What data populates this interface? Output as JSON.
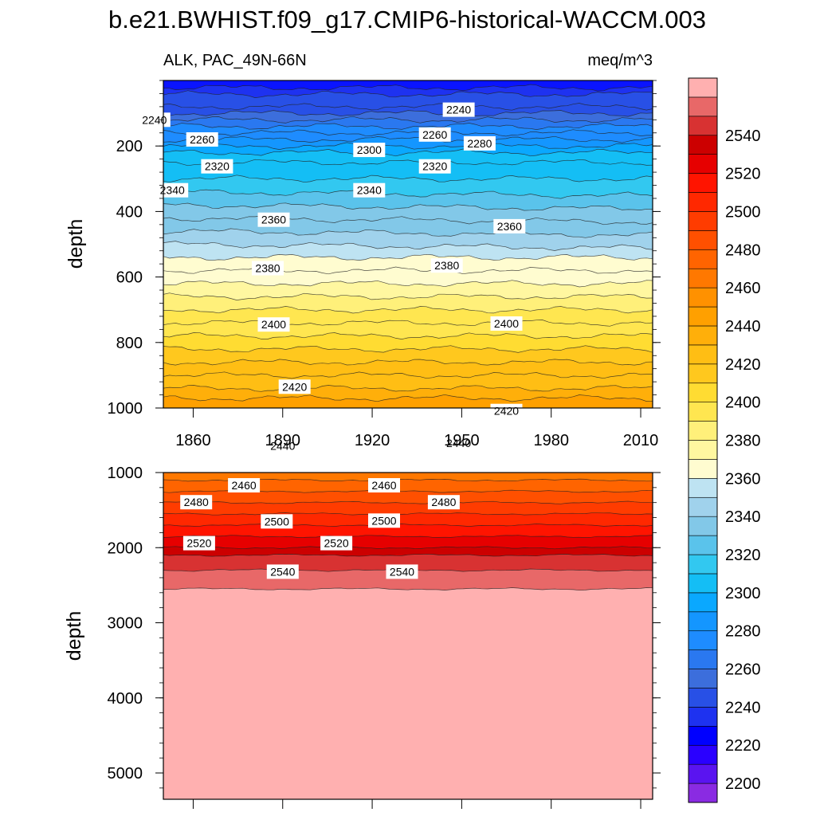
{
  "chart_data": {
    "type": "heatmap",
    "title": "b.e21.BWHIST.f09_g17.CMIP6-historical-WACCM.003",
    "subtitle_left": "ALK, PAC_49N-66N",
    "subtitle_right": "meq/m^3",
    "xlim": [
      1850,
      2014
    ],
    "x_ticks": [
      "1860",
      "1890",
      "1920",
      "1950",
      "1980",
      "2010"
    ],
    "panels": [
      {
        "name": "upper",
        "ylabel": "depth",
        "ylim": [
          0,
          1000
        ],
        "y_ticks": [
          "200",
          "400",
          "600",
          "800",
          "1000"
        ],
        "contour_depths": [
          22,
          42,
          80,
          100,
          120,
          140,
          160,
          180,
          200,
          220,
          250,
          300,
          340,
          380,
          420,
          460,
          500,
          540,
          580,
          620,
          660,
          700,
          740,
          780,
          820,
          860,
          900,
          940,
          970
        ],
        "contour_labels": [
          {
            "text": "2240",
            "x": 1847,
            "y": 120
          },
          {
            "text": "2240",
            "x": 1949,
            "y": 89
          },
          {
            "text": "2260",
            "x": 1863,
            "y": 180
          },
          {
            "text": "2260",
            "x": 1941,
            "y": 165
          },
          {
            "text": "2280",
            "x": 1956,
            "y": 192
          },
          {
            "text": "2300",
            "x": 1919,
            "y": 212
          },
          {
            "text": "2320",
            "x": 1868,
            "y": 262
          },
          {
            "text": "2320",
            "x": 1941,
            "y": 262
          },
          {
            "text": "2340",
            "x": 1853,
            "y": 335
          },
          {
            "text": "2340",
            "x": 1919,
            "y": 335
          },
          {
            "text": "2360",
            "x": 1887,
            "y": 425
          },
          {
            "text": "2360",
            "x": 1966,
            "y": 445
          },
          {
            "text": "2380",
            "x": 1885,
            "y": 573
          },
          {
            "text": "2380",
            "x": 1945,
            "y": 565
          },
          {
            "text": "2400",
            "x": 1887,
            "y": 745
          },
          {
            "text": "2400",
            "x": 1965,
            "y": 742
          },
          {
            "text": "2420",
            "x": 1894,
            "y": 935
          },
          {
            "text": "2420",
            "x": 1965,
            "y": 1009
          },
          {
            "text": "2440",
            "x": 1890,
            "y": 1116
          },
          {
            "text": "2440",
            "x": 1949,
            "y": 1107
          }
        ]
      },
      {
        "name": "lower",
        "ylabel": "depth",
        "ylim": [
          1000,
          5350
        ],
        "y_ticks": [
          "1000",
          "2000",
          "3000",
          "4000",
          "5000"
        ],
        "contour_depths": [
          1100,
          1250,
          1400,
          1550,
          1700,
          1850,
          2000,
          2100,
          2300,
          2550
        ],
        "contour_labels": [
          {
            "text": "2460",
            "x": 1877,
            "y": 1170
          },
          {
            "text": "2460",
            "x": 1924,
            "y": 1170
          },
          {
            "text": "2480",
            "x": 1861,
            "y": 1395
          },
          {
            "text": "2480",
            "x": 1944,
            "y": 1395
          },
          {
            "text": "2500",
            "x": 1888,
            "y": 1650
          },
          {
            "text": "2500",
            "x": 1924,
            "y": 1640
          },
          {
            "text": "2520",
            "x": 1862,
            "y": 1940
          },
          {
            "text": "2520",
            "x": 1908,
            "y": 1940
          },
          {
            "text": "2540",
            "x": 1890,
            "y": 2320
          },
          {
            "text": "2540",
            "x": 1930,
            "y": 2320
          }
        ]
      }
    ],
    "colorbar": {
      "min": 2190,
      "max": 2560,
      "step": 10,
      "labels": [
        "2200",
        "2220",
        "2240",
        "2260",
        "2280",
        "2300",
        "2320",
        "2340",
        "2360",
        "2380",
        "2400",
        "2420",
        "2440",
        "2460",
        "2480",
        "2500",
        "2520",
        "2540"
      ],
      "colors": [
        "#8A2BE2",
        "#5A14F0",
        "#2A00FF",
        "#0000FF",
        "#1E32F0",
        "#2850E6",
        "#3C6EDC",
        "#2A78F0",
        "#1E8CFF",
        "#1496FF",
        "#0AA8FF",
        "#14BEF5",
        "#32C8F0",
        "#5AC3EB",
        "#82C8E8",
        "#A0D2EC",
        "#BEE3F2",
        "#FFFCD0",
        "#FFF7A0",
        "#FFF07A",
        "#FFE650",
        "#FFDC32",
        "#FFC81E",
        "#FFBE14",
        "#FFAF0A",
        "#FFA000",
        "#FF9100",
        "#FF7800",
        "#FF6400",
        "#FF5000",
        "#FF3C00",
        "#FF2800",
        "#FF1400",
        "#E60000",
        "#CC0000",
        "#D83232",
        "#E86868",
        "#FFB0B0"
      ]
    }
  }
}
